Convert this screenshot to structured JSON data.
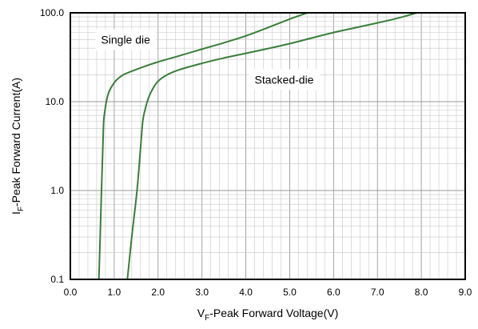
{
  "chart_data": {
    "type": "line",
    "xlabel": {
      "prefix": "V",
      "subscript": "F",
      "rest": "-Peak Forward Voltage(V)"
    },
    "ylabel": {
      "prefix": "I",
      "subscript": "F",
      "rest": "-Peak Forward Current(A)"
    },
    "x_axis": {
      "scale": "linear",
      "range": [
        0,
        9
      ],
      "ticks": [
        0,
        1,
        2,
        3,
        4,
        5,
        6,
        7,
        8,
        9
      ],
      "tick_labels": [
        "0.0",
        "1.0",
        "2.0",
        "3.0",
        "4.0",
        "5.0",
        "6.0",
        "7.0",
        "8.0",
        "9.0"
      ],
      "minor_step": 0.2
    },
    "y_axis": {
      "scale": "log",
      "range": [
        0.1,
        100
      ],
      "ticks": [
        0.1,
        1,
        10,
        100
      ],
      "tick_labels": [
        "0.1",
        "1.0",
        "10.0",
        "100.0"
      ]
    },
    "grid": true,
    "line_color": "#3a7d3a",
    "series": [
      {
        "name": "Single die",
        "x": [
          0.65,
          0.68,
          0.71,
          0.74,
          0.76,
          0.79,
          0.82,
          0.87,
          0.95,
          1.05,
          1.2,
          1.4,
          1.7,
          2.0,
          2.5,
          3.0,
          3.5,
          4.0,
          4.5,
          5.0,
          5.4
        ],
        "y": [
          0.1,
          0.3,
          1.0,
          3.0,
          6.0,
          8.0,
          10.0,
          12.5,
          15.0,
          17.5,
          20.0,
          22.0,
          25.0,
          28.0,
          33.0,
          39.0,
          46.0,
          55.0,
          68.0,
          85.0,
          100.0
        ]
      },
      {
        "name": "Stacked-die",
        "x": [
          1.3,
          1.4,
          1.52,
          1.6,
          1.65,
          1.7,
          1.78,
          1.88,
          2.0,
          2.2,
          2.5,
          3.0,
          3.5,
          4.0,
          4.5,
          5.0,
          5.5,
          6.0,
          6.5,
          7.0,
          7.5,
          7.9
        ],
        "y": [
          0.1,
          0.3,
          1.0,
          3.0,
          6.0,
          8.0,
          11.0,
          14.0,
          17.0,
          20.0,
          23.0,
          27.0,
          31.0,
          35.0,
          39.5,
          45.0,
          52.0,
          60.0,
          68.0,
          77.0,
          88.0,
          100.0
        ]
      }
    ],
    "annotations": [
      {
        "text": "Single die",
        "x": 0.7,
        "y": 45,
        "series": 0
      },
      {
        "text": "Stacked-die",
        "x": 4.2,
        "y": 16,
        "series": 1
      }
    ]
  }
}
